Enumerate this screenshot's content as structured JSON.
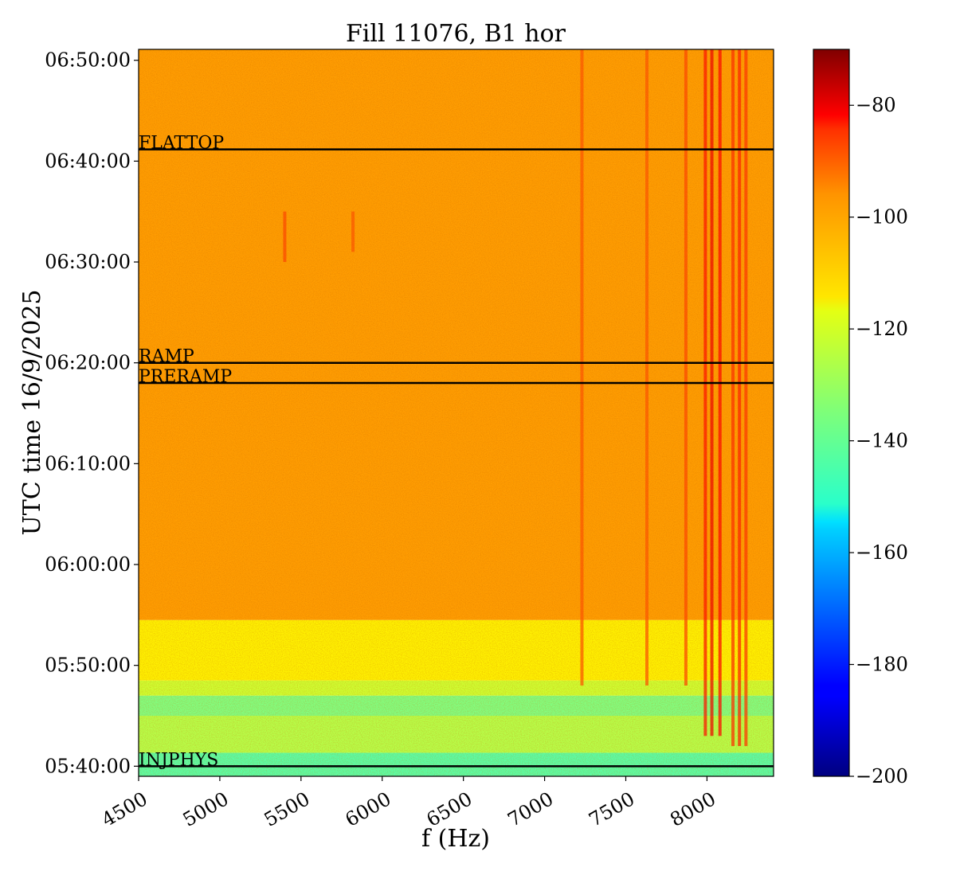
{
  "chart_data": {
    "type": "heatmap",
    "title": "Fill 11076, B1 hor",
    "xlabel": "f (Hz)",
    "ylabel": "UTC time 16/9/2025",
    "xlim": [
      4500,
      8410
    ],
    "ylim": [
      "05:39:00",
      "06:51:05"
    ],
    "x_ticks": [
      "4500",
      "5000",
      "5500",
      "6000",
      "6500",
      "7000",
      "7500",
      "8000"
    ],
    "y_ticks": [
      "05:40:00",
      "05:50:00",
      "06:00:00",
      "06:10:00",
      "06:20:00",
      "06:30:00",
      "06:40:00",
      "06:50:00"
    ],
    "colorbar": {
      "range": [
        -200,
        -70
      ],
      "colormap": "jet",
      "ticks": [
        "−80",
        "−100",
        "−120",
        "−140",
        "−160",
        "−180",
        "−200"
      ]
    },
    "grid": false,
    "legend": "none",
    "annotations": [
      {
        "label": "INJPHYS",
        "time": "05:40:00"
      },
      {
        "label": "PRERAMP",
        "time": "06:18:00"
      },
      {
        "label": "RAMP",
        "time": "06:20:00"
      },
      {
        "label": "FLATTOP",
        "time": "06:41:10"
      }
    ],
    "intensity_bands": [
      {
        "from": "05:39:00",
        "to": "05:41:20",
        "value": -140
      },
      {
        "from": "05:41:20",
        "to": "05:45:00",
        "value": -128
      },
      {
        "from": "05:45:00",
        "to": "05:47:00",
        "value": -135
      },
      {
        "from": "05:47:00",
        "to": "05:48:30",
        "value": -125
      },
      {
        "from": "05:48:30",
        "to": "05:54:30",
        "value": -117
      },
      {
        "from": "05:54:30",
        "to": "06:51:05",
        "value": -106
      }
    ],
    "spectral_lines": [
      {
        "freq": 7230,
        "from": "05:48:00",
        "to": "06:51:05",
        "value": -97
      },
      {
        "freq": 7630,
        "from": "05:48:00",
        "to": "06:51:05",
        "value": -97
      },
      {
        "freq": 7870,
        "from": "05:48:00",
        "to": "06:51:05",
        "value": -95
      },
      {
        "freq": 7990,
        "from": "05:43:00",
        "to": "06:51:05",
        "value": -88
      },
      {
        "freq": 8030,
        "from": "05:43:00",
        "to": "06:51:05",
        "value": -84
      },
      {
        "freq": 8080,
        "from": "05:43:00",
        "to": "06:51:05",
        "value": -86
      },
      {
        "freq": 8160,
        "from": "05:42:00",
        "to": "06:51:05",
        "value": -92
      },
      {
        "freq": 8200,
        "from": "05:42:00",
        "to": "06:51:05",
        "value": -90
      },
      {
        "freq": 8240,
        "from": "05:42:00",
        "to": "06:51:05",
        "value": -93
      },
      {
        "freq": 5400,
        "from": "06:30:00",
        "to": "06:35:00",
        "value": -95
      },
      {
        "freq": 5820,
        "from": "06:31:00",
        "to": "06:35:00",
        "value": -97
      }
    ]
  }
}
